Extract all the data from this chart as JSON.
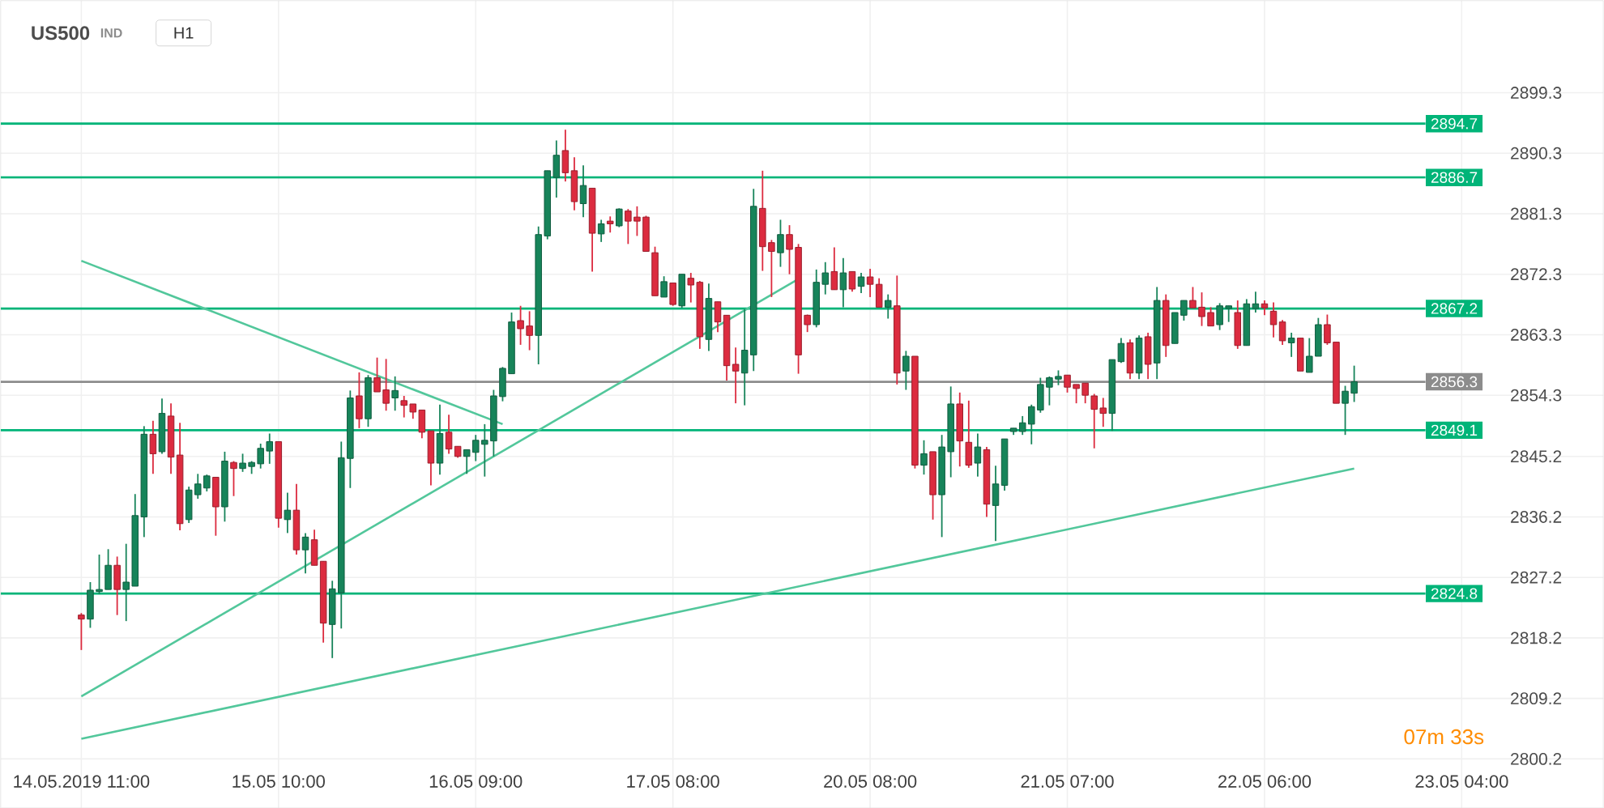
{
  "chart_data": {
    "type": "candlestick",
    "title": "US500",
    "annotations": [
      "IND",
      "H1",
      "07m 33s"
    ],
    "categories": [
      "14.05.2019 11:00",
      null,
      null,
      null,
      null,
      null,
      null,
      null,
      null,
      null,
      null,
      null,
      null,
      null,
      null,
      null,
      null,
      null,
      null,
      null,
      null,
      null,
      "15.05 10:00",
      null,
      null,
      null,
      null,
      null,
      null,
      null,
      null,
      null,
      null,
      null,
      null,
      null,
      null,
      null,
      null,
      null,
      null,
      null,
      null,
      null,
      "16.05 09:00",
      null,
      null,
      null,
      null,
      null,
      null,
      null,
      null,
      null,
      null,
      null,
      null,
      null,
      null,
      null,
      null,
      null,
      null,
      null,
      null,
      null,
      "17.05 08:00",
      null,
      null,
      null,
      null,
      null,
      null,
      null,
      null,
      null,
      null,
      null,
      null,
      null,
      null,
      null,
      null,
      null,
      null,
      null,
      null,
      null,
      "20.05 08:00",
      null,
      null,
      null,
      null,
      null,
      null,
      null,
      null,
      null,
      null,
      null,
      null,
      null,
      null,
      null,
      null,
      null,
      null,
      null,
      null,
      null,
      "21.05 07:00",
      null,
      null,
      null,
      null,
      null,
      null,
      null,
      null,
      null,
      null,
      null,
      null,
      null,
      null,
      null,
      null,
      null,
      null,
      null,
      null,
      null,
      "22.05 06:00",
      null,
      null,
      null,
      null,
      null,
      null,
      null,
      null,
      null,
      null,
      null,
      null,
      null,
      null,
      null,
      null,
      null,
      null,
      null,
      null,
      null,
      "23.05 04:00"
    ],
    "ohlc": [
      [
        2821.6,
        2821.9,
        2816.4,
        2821.0
      ],
      [
        2821.0,
        2826.5,
        2819.7,
        2825.3
      ],
      [
        2825.1,
        2830.6,
        2824.7,
        2825.4
      ],
      [
        2825.4,
        2831.4,
        2825.4,
        2829.0
      ],
      [
        2829.0,
        2830.3,
        2821.6,
        2825.4
      ],
      [
        2825.4,
        2832.2,
        2820.7,
        2826.5
      ],
      [
        2825.9,
        2839.6,
        2825.9,
        2836.4
      ],
      [
        2836.2,
        2849.7,
        2833.2,
        2848.5
      ],
      [
        2848.5,
        2850.5,
        2842.6,
        2845.6
      ],
      [
        2845.9,
        2853.8,
        2845.6,
        2851.6
      ],
      [
        2851.2,
        2853.1,
        2842.6,
        2845.1
      ],
      [
        2845.4,
        2850.2,
        2834.2,
        2835.2
      ],
      [
        2835.8,
        2840.7,
        2835.3,
        2840.2
      ],
      [
        2839.5,
        2842.6,
        2838.9,
        2841.1
      ],
      [
        2840.5,
        2842.5,
        2840.0,
        2842.3
      ],
      [
        2842.1,
        2842.1,
        2833.4,
        2837.7
      ],
      [
        2837.7,
        2845.9,
        2835.5,
        2844.5
      ],
      [
        2844.3,
        2844.5,
        2839.3,
        2843.4
      ],
      [
        2843.4,
        2845.6,
        2842.9,
        2844.2
      ],
      [
        2843.7,
        2844.5,
        2842.6,
        2844.3
      ],
      [
        2844.1,
        2847.1,
        2843.4,
        2846.4
      ],
      [
        2846.0,
        2848.6,
        2844.1,
        2847.4
      ],
      [
        2847.4,
        2847.4,
        2834.6,
        2836.0
      ],
      [
        2835.8,
        2839.8,
        2833.8,
        2837.2
      ],
      [
        2837.2,
        2841.1,
        2830.6,
        2831.3
      ],
      [
        2831.3,
        2833.8,
        2827.8,
        2833.2
      ],
      [
        2832.8,
        2834.3,
        2829.0,
        2829.0
      ],
      [
        2829.6,
        2829.6,
        2817.5,
        2820.4
      ],
      [
        2820.2,
        2826.7,
        2815.2,
        2825.5
      ],
      [
        2824.9,
        2847.4,
        2819.6,
        2845.0
      ],
      [
        2844.9,
        2855.0,
        2840.5,
        2853.9
      ],
      [
        2854.2,
        2857.7,
        2849.4,
        2850.8
      ],
      [
        2850.8,
        2857.3,
        2849.6,
        2856.9
      ],
      [
        2856.9,
        2859.9,
        2854.8,
        2854.8
      ],
      [
        2855.1,
        2859.7,
        2852.0,
        2853.1
      ],
      [
        2853.9,
        2857.1,
        2852.0,
        2855.0
      ],
      [
        2853.5,
        2854.2,
        2851.0,
        2852.8
      ],
      [
        2853.0,
        2853.0,
        2850.8,
        2851.8
      ],
      [
        2852.1,
        2852.1,
        2847.9,
        2848.8
      ],
      [
        2849.0,
        2849.0,
        2840.9,
        2844.2
      ],
      [
        2844.2,
        2852.9,
        2842.5,
        2848.6
      ],
      [
        2848.8,
        2851.4,
        2845.6,
        2846.3
      ],
      [
        2846.7,
        2846.7,
        2845.0,
        2845.2
      ],
      [
        2845.2,
        2846.2,
        2842.6,
        2846.2
      ],
      [
        2845.8,
        2848.4,
        2844.5,
        2847.6
      ],
      [
        2847.0,
        2850.0,
        2842.2,
        2847.6
      ],
      [
        2847.5,
        2855.1,
        2845.2,
        2854.2
      ],
      [
        2854.1,
        2858.5,
        2853.4,
        2858.3
      ],
      [
        2857.5,
        2866.6,
        2857.5,
        2865.2
      ],
      [
        2865.4,
        2867.6,
        2861.8,
        2864.2
      ],
      [
        2864.6,
        2866.8,
        2861.0,
        2863.2
      ],
      [
        2863.2,
        2879.4,
        2858.9,
        2878.2
      ],
      [
        2878.0,
        2887.7,
        2877.5,
        2887.7
      ],
      [
        2886.7,
        2892.2,
        2883.7,
        2890.0
      ],
      [
        2890.7,
        2893.8,
        2886.1,
        2887.4
      ],
      [
        2887.7,
        2889.7,
        2881.8,
        2883.1
      ],
      [
        2882.8,
        2888.5,
        2880.8,
        2885.5
      ],
      [
        2885.1,
        2885.1,
        2872.7,
        2878.4
      ],
      [
        2878.3,
        2880.4,
        2877.1,
        2879.8
      ],
      [
        2880.2,
        2880.9,
        2878.5,
        2879.8
      ],
      [
        2879.5,
        2882.1,
        2879.3,
        2882.0
      ],
      [
        2881.7,
        2882.0,
        2876.8,
        2880.2
      ],
      [
        2880.8,
        2882.4,
        2878.0,
        2880.2
      ],
      [
        2880.8,
        2881.0,
        2875.7,
        2875.7
      ],
      [
        2875.5,
        2876.4,
        2869.1,
        2869.1
      ],
      [
        2868.9,
        2872.0,
        2868.9,
        2871.2
      ],
      [
        2871.0,
        2871.0,
        2867.6,
        2867.8
      ],
      [
        2867.6,
        2872.3,
        2867.3,
        2872.3
      ],
      [
        2871.7,
        2872.5,
        2868.1,
        2870.7
      ],
      [
        2871.1,
        2871.3,
        2861.2,
        2863.0
      ],
      [
        2862.6,
        2870.9,
        2860.9,
        2868.7
      ],
      [
        2868.2,
        2868.2,
        2863.7,
        2865.2
      ],
      [
        2866.2,
        2866.2,
        2856.5,
        2858.7
      ],
      [
        2858.9,
        2861.4,
        2853.1,
        2857.9
      ],
      [
        2857.6,
        2867.1,
        2852.8,
        2861.0
      ],
      [
        2860.3,
        2885.0,
        2857.9,
        2882.4
      ],
      [
        2882.1,
        2887.7,
        2872.8,
        2876.4
      ],
      [
        2877.0,
        2877.4,
        2868.9,
        2875.7
      ],
      [
        2875.5,
        2880.4,
        2873.4,
        2878.2
      ],
      [
        2878.2,
        2879.6,
        2872.3,
        2876.0
      ],
      [
        2876.3,
        2876.8,
        2857.5,
        2860.3
      ],
      [
        2866.2,
        2866.3,
        2863.7,
        2864.8
      ],
      [
        2864.8,
        2873.0,
        2864.4,
        2871.1
      ],
      [
        2870.8,
        2874.1,
        2869.3,
        2872.5
      ],
      [
        2872.7,
        2876.3,
        2870.0,
        2870.0
      ],
      [
        2870.0,
        2874.7,
        2867.4,
        2872.5
      ],
      [
        2872.7,
        2872.7,
        2869.7,
        2870.1
      ],
      [
        2870.5,
        2872.5,
        2869.5,
        2871.9
      ],
      [
        2871.9,
        2873.1,
        2868.9,
        2870.8
      ],
      [
        2870.8,
        2871.7,
        2867.4,
        2867.4
      ],
      [
        2867.4,
        2869.3,
        2865.7,
        2868.4
      ],
      [
        2867.6,
        2872.1,
        2855.9,
        2857.6
      ],
      [
        2857.9,
        2860.9,
        2855.1,
        2860.1
      ],
      [
        2860.1,
        2860.1,
        2843.4,
        2843.9
      ],
      [
        2843.9,
        2847.6,
        2842.5,
        2845.6
      ],
      [
        2845.9,
        2845.9,
        2835.8,
        2839.5
      ],
      [
        2839.5,
        2848.4,
        2833.2,
        2846.6
      ],
      [
        2845.9,
        2855.6,
        2842.1,
        2853.0
      ],
      [
        2853.0,
        2854.7,
        2843.7,
        2847.5
      ],
      [
        2847.3,
        2853.5,
        2843.5,
        2843.9
      ],
      [
        2844.2,
        2848.6,
        2842.2,
        2846.6
      ],
      [
        2846.2,
        2846.6,
        2836.2,
        2838.1
      ],
      [
        2837.9,
        2843.8,
        2832.6,
        2841.1
      ],
      [
        2840.9,
        2847.8,
        2840.1,
        2847.8
      ],
      [
        2848.9,
        2849.4,
        2848.4,
        2849.4
      ],
      [
        2848.9,
        2851.2,
        2848.4,
        2850.2
      ],
      [
        2850.0,
        2852.9,
        2847.0,
        2852.6
      ],
      [
        2852.1,
        2856.9,
        2851.7,
        2855.9
      ],
      [
        2855.5,
        2857.1,
        2852.8,
        2856.9
      ],
      [
        2856.7,
        2858.0,
        2855.8,
        2857.1
      ],
      [
        2857.3,
        2857.3,
        2854.7,
        2855.5
      ],
      [
        2855.9,
        2855.9,
        2853.1,
        2855.3
      ],
      [
        2856.1,
        2856.1,
        2853.1,
        2854.3
      ],
      [
        2854.2,
        2854.5,
        2846.4,
        2852.2
      ],
      [
        2852.4,
        2853.9,
        2849.6,
        2851.6
      ],
      [
        2851.6,
        2859.6,
        2849.0,
        2859.6
      ],
      [
        2859.3,
        2862.8,
        2859.1,
        2862.0
      ],
      [
        2862.1,
        2862.6,
        2856.7,
        2857.6
      ],
      [
        2857.6,
        2863.2,
        2856.7,
        2862.8
      ],
      [
        2863.0,
        2863.6,
        2856.7,
        2858.9
      ],
      [
        2859.1,
        2870.4,
        2856.7,
        2868.4
      ],
      [
        2868.4,
        2869.3,
        2860.0,
        2861.7
      ],
      [
        2862.0,
        2866.6,
        2862.0,
        2866.6
      ],
      [
        2866.2,
        2868.4,
        2865.4,
        2868.4
      ],
      [
        2868.4,
        2870.4,
        2867.3,
        2867.3
      ],
      [
        2867.4,
        2869.6,
        2864.6,
        2866.0
      ],
      [
        2866.6,
        2867.4,
        2864.6,
        2864.6
      ],
      [
        2864.8,
        2868.0,
        2864.0,
        2867.6
      ],
      [
        2867.2,
        2867.6,
        2865.2,
        2867.6
      ],
      [
        2866.6,
        2868.4,
        2861.2,
        2861.7
      ],
      [
        2861.7,
        2868.6,
        2861.7,
        2867.9
      ],
      [
        2867.2,
        2869.7,
        2866.6,
        2867.9
      ],
      [
        2867.9,
        2868.4,
        2866.2,
        2867.3
      ],
      [
        2866.8,
        2868.1,
        2862.9,
        2864.8
      ],
      [
        2865.2,
        2865.5,
        2861.8,
        2862.4
      ],
      [
        2862.1,
        2863.6,
        2860.0,
        2862.8
      ],
      [
        2862.8,
        2862.8,
        2857.9,
        2857.9
      ],
      [
        2857.7,
        2862.8,
        2857.7,
        2860.1
      ],
      [
        2860.1,
        2865.8,
        2860.1,
        2864.8
      ],
      [
        2864.8,
        2866.3,
        2861.8,
        2862.1
      ],
      [
        2862.2,
        2862.2,
        2853.1,
        2853.1
      ],
      [
        2853.1,
        2855.7,
        2848.4,
        2854.9
      ],
      [
        2854.6,
        2858.7,
        2853.3,
        2856.3
      ],
      null,
      null,
      null,
      null,
      null,
      null,
      null,
      null,
      null,
      null,
      null,
      null
    ],
    "colors": [
      "#dc2b3f",
      "#17845a",
      "#17845a",
      "#17845a",
      "#dc2b3f",
      "#17845a",
      "#17845a",
      "#17845a",
      "#dc2b3f",
      "#17845a",
      "#dc2b3f",
      "#dc2b3f",
      "#17845a",
      "#17845a",
      "#17845a",
      "#dc2b3f",
      "#17845a",
      "#dc2b3f",
      "#17845a",
      "#17845a",
      "#17845a",
      "#17845a",
      "#dc2b3f",
      "#17845a",
      "#dc2b3f",
      "#17845a",
      "#dc2b3f",
      "#dc2b3f",
      "#17845a",
      "#17845a",
      "#17845a",
      "#dc2b3f",
      "#17845a",
      "#dc2b3f",
      "#dc2b3f",
      "#17845a",
      "#dc2b3f",
      "#dc2b3f",
      "#dc2b3f",
      "#dc2b3f",
      "#17845a",
      "#dc2b3f",
      "#dc2b3f",
      "#17845a",
      "#17845a",
      "#17845a",
      "#17845a",
      "#17845a",
      "#17845a",
      "#dc2b3f",
      "#dc2b3f",
      "#17845a",
      "#17845a",
      "#17845a",
      "#dc2b3f",
      "#dc2b3f",
      "#17845a",
      "#dc2b3f",
      "#17845a",
      "#dc2b3f",
      "#17845a",
      "#dc2b3f",
      "#dc2b3f",
      "#dc2b3f",
      "#dc2b3f",
      "#17845a",
      "#dc2b3f",
      "#17845a",
      "#dc2b3f",
      "#dc2b3f",
      "#17845a",
      "#dc2b3f",
      "#dc2b3f",
      "#dc2b3f",
      "#17845a",
      "#17845a",
      "#dc2b3f",
      "#dc2b3f",
      "#17845a",
      "#dc2b3f",
      "#dc2b3f",
      "#dc2b3f",
      "#17845a",
      "#17845a",
      "#dc2b3f",
      "#17845a",
      "#dc2b3f",
      "#17845a",
      "#dc2b3f",
      "#dc2b3f",
      "#17845a",
      "#dc2b3f",
      "#17845a",
      "#dc2b3f",
      "#17845a",
      "#dc2b3f",
      "#17845a",
      "#17845a",
      "#dc2b3f",
      "#dc2b3f",
      "#17845a",
      "#dc2b3f",
      "#17845a",
      "#17845a",
      "#17845a",
      "#17845a",
      "#17845a",
      "#17845a",
      "#17845a",
      "#17845a",
      "#dc2b3f",
      "#dc2b3f",
      "#dc2b3f",
      "#dc2b3f",
      "#dc2b3f",
      "#17845a",
      "#17845a",
      "#dc2b3f",
      "#17845a",
      "#dc2b3f",
      "#17845a",
      "#dc2b3f",
      "#17845a",
      "#17845a",
      "#dc2b3f",
      "#dc2b3f",
      "#dc2b3f",
      "#17845a",
      "#17845a",
      "#dc2b3f",
      "#17845a",
      "#17845a",
      "#dc2b3f",
      "#dc2b3f",
      "#dc2b3f",
      "#17845a",
      "#dc2b3f",
      "#17845a",
      "#17845a",
      "#dc2b3f",
      "#dc2b3f",
      "#17845a",
      "#17845a",
      null,
      null,
      null,
      null,
      null,
      null,
      null,
      null,
      null,
      null,
      null,
      null
    ],
    "series": [
      {
        "type": "line",
        "values": [
          2874.3,
          null,
          null,
          null,
          null,
          null,
          null,
          null,
          null,
          null,
          null,
          null,
          null,
          null,
          null,
          null,
          null,
          null,
          null,
          null,
          null,
          null,
          null,
          null,
          null,
          null,
          null,
          null,
          null,
          null,
          null,
          null,
          null,
          null,
          null,
          null,
          null,
          null,
          null,
          null,
          null,
          null,
          null,
          null,
          null,
          null,
          null,
          2850.0,
          null,
          null,
          null,
          null,
          null,
          null,
          null,
          null,
          null,
          null,
          null,
          null,
          null,
          null,
          null,
          null,
          null,
          null,
          null,
          null,
          null,
          null,
          null,
          null,
          null,
          null,
          null,
          null,
          null,
          null,
          null,
          null,
          null,
          null,
          null,
          null,
          null,
          null,
          null,
          null,
          null,
          null,
          null,
          null,
          null,
          null,
          null,
          null,
          null,
          null,
          null,
          null,
          null,
          null,
          null,
          null,
          null,
          null,
          null,
          null,
          null,
          null,
          null,
          null,
          null,
          null,
          null,
          null,
          null,
          null,
          null,
          null,
          null,
          null,
          null,
          null,
          null,
          null,
          null,
          null,
          null,
          null,
          null,
          null,
          null,
          null,
          null,
          null,
          null,
          null,
          null,
          null,
          null,
          null,
          null,
          null,
          null,
          null,
          null,
          null,
          null,
          null,
          null,
          null,
          null,
          null,
          null
        ],
        "color": "#52c79b"
      },
      {
        "type": "line",
        "values": [
          2809.5,
          null,
          null,
          null,
          null,
          null,
          null,
          null,
          null,
          null,
          null,
          null,
          null,
          null,
          null,
          null,
          null,
          null,
          null,
          null,
          null,
          null,
          null,
          null,
          null,
          null,
          null,
          null,
          null,
          null,
          null,
          null,
          null,
          null,
          null,
          null,
          null,
          null,
          null,
          null,
          null,
          null,
          null,
          null,
          null,
          null,
          null,
          null,
          null,
          null,
          null,
          null,
          null,
          null,
          null,
          null,
          null,
          null,
          null,
          null,
          null,
          null,
          null,
          null,
          null,
          null,
          null,
          null,
          null,
          null,
          null,
          null,
          null,
          null,
          null,
          null,
          null,
          null,
          null,
          null,
          2871.6,
          null,
          null,
          null,
          null,
          null,
          null,
          null,
          null,
          null,
          null,
          null,
          null,
          null,
          null,
          null,
          null,
          null,
          null,
          null,
          null,
          null,
          null,
          null,
          null,
          null,
          null,
          null,
          null,
          null,
          null,
          null,
          null,
          null,
          null,
          null,
          null,
          null,
          null,
          null,
          null,
          null,
          null,
          null,
          null,
          null,
          null,
          null,
          null,
          null,
          null,
          null,
          null,
          null,
          null,
          null,
          null,
          null,
          null,
          null,
          null,
          null,
          null,
          null,
          null,
          null,
          null,
          null,
          null,
          null,
          null,
          null,
          null,
          null,
          null
        ],
        "color": "#52c79b"
      },
      {
        "type": "line",
        "values": [
          2803.2,
          null,
          null,
          null,
          null,
          null,
          null,
          null,
          null,
          null,
          null,
          null,
          null,
          null,
          null,
          null,
          null,
          null,
          null,
          null,
          null,
          null,
          null,
          null,
          null,
          null,
          null,
          null,
          null,
          null,
          null,
          null,
          null,
          null,
          null,
          null,
          null,
          null,
          null,
          null,
          null,
          null,
          null,
          null,
          null,
          null,
          null,
          null,
          null,
          null,
          null,
          null,
          null,
          null,
          null,
          null,
          null,
          null,
          null,
          null,
          null,
          null,
          null,
          null,
          null,
          null,
          null,
          null,
          null,
          null,
          null,
          null,
          null,
          null,
          null,
          null,
          null,
          null,
          null,
          null,
          null,
          null,
          null,
          null,
          null,
          null,
          null,
          null,
          null,
          null,
          null,
          null,
          null,
          null,
          null,
          null,
          null,
          null,
          null,
          null,
          null,
          null,
          null,
          null,
          null,
          null,
          null,
          null,
          null,
          null,
          null,
          null,
          null,
          null,
          null,
          null,
          null,
          null,
          null,
          null,
          null,
          null,
          null,
          null,
          null,
          null,
          null,
          null,
          null,
          null,
          null,
          null,
          null,
          null,
          null,
          null,
          null,
          null,
          null,
          null,
          null,
          null,
          2843.4,
          null,
          null,
          null,
          null,
          null,
          null,
          null,
          null,
          null,
          null,
          null,
          null
        ],
        "color": "#52c79b"
      }
    ],
    "ref_lines": [
      {
        "axis": "y",
        "value": 2894.7,
        "label": "2894.7",
        "color": "#00b478"
      },
      {
        "axis": "y",
        "value": 2886.7,
        "label": "2886.7",
        "color": "#00b478"
      },
      {
        "axis": "y",
        "value": 2867.2,
        "label": "2867.2",
        "color": "#00b478"
      },
      {
        "axis": "y",
        "value": 2849.1,
        "label": "2849.1",
        "color": "#00b478"
      },
      {
        "axis": "y",
        "value": 2824.8,
        "label": "2824.8",
        "color": "#00b478"
      },
      {
        "axis": "y",
        "value": 2856.3,
        "label": "2856.3",
        "color": "#8c8c8c"
      }
    ],
    "ylim": [
      2792.9,
      2913.0
    ],
    "yticks": [
      2800.2,
      2809.2,
      2818.2,
      2827.2,
      2836.2,
      2845.2,
      2854.3,
      2863.3,
      2872.3,
      2881.3,
      2890.3,
      2899.3
    ],
    "grid": true
  }
}
